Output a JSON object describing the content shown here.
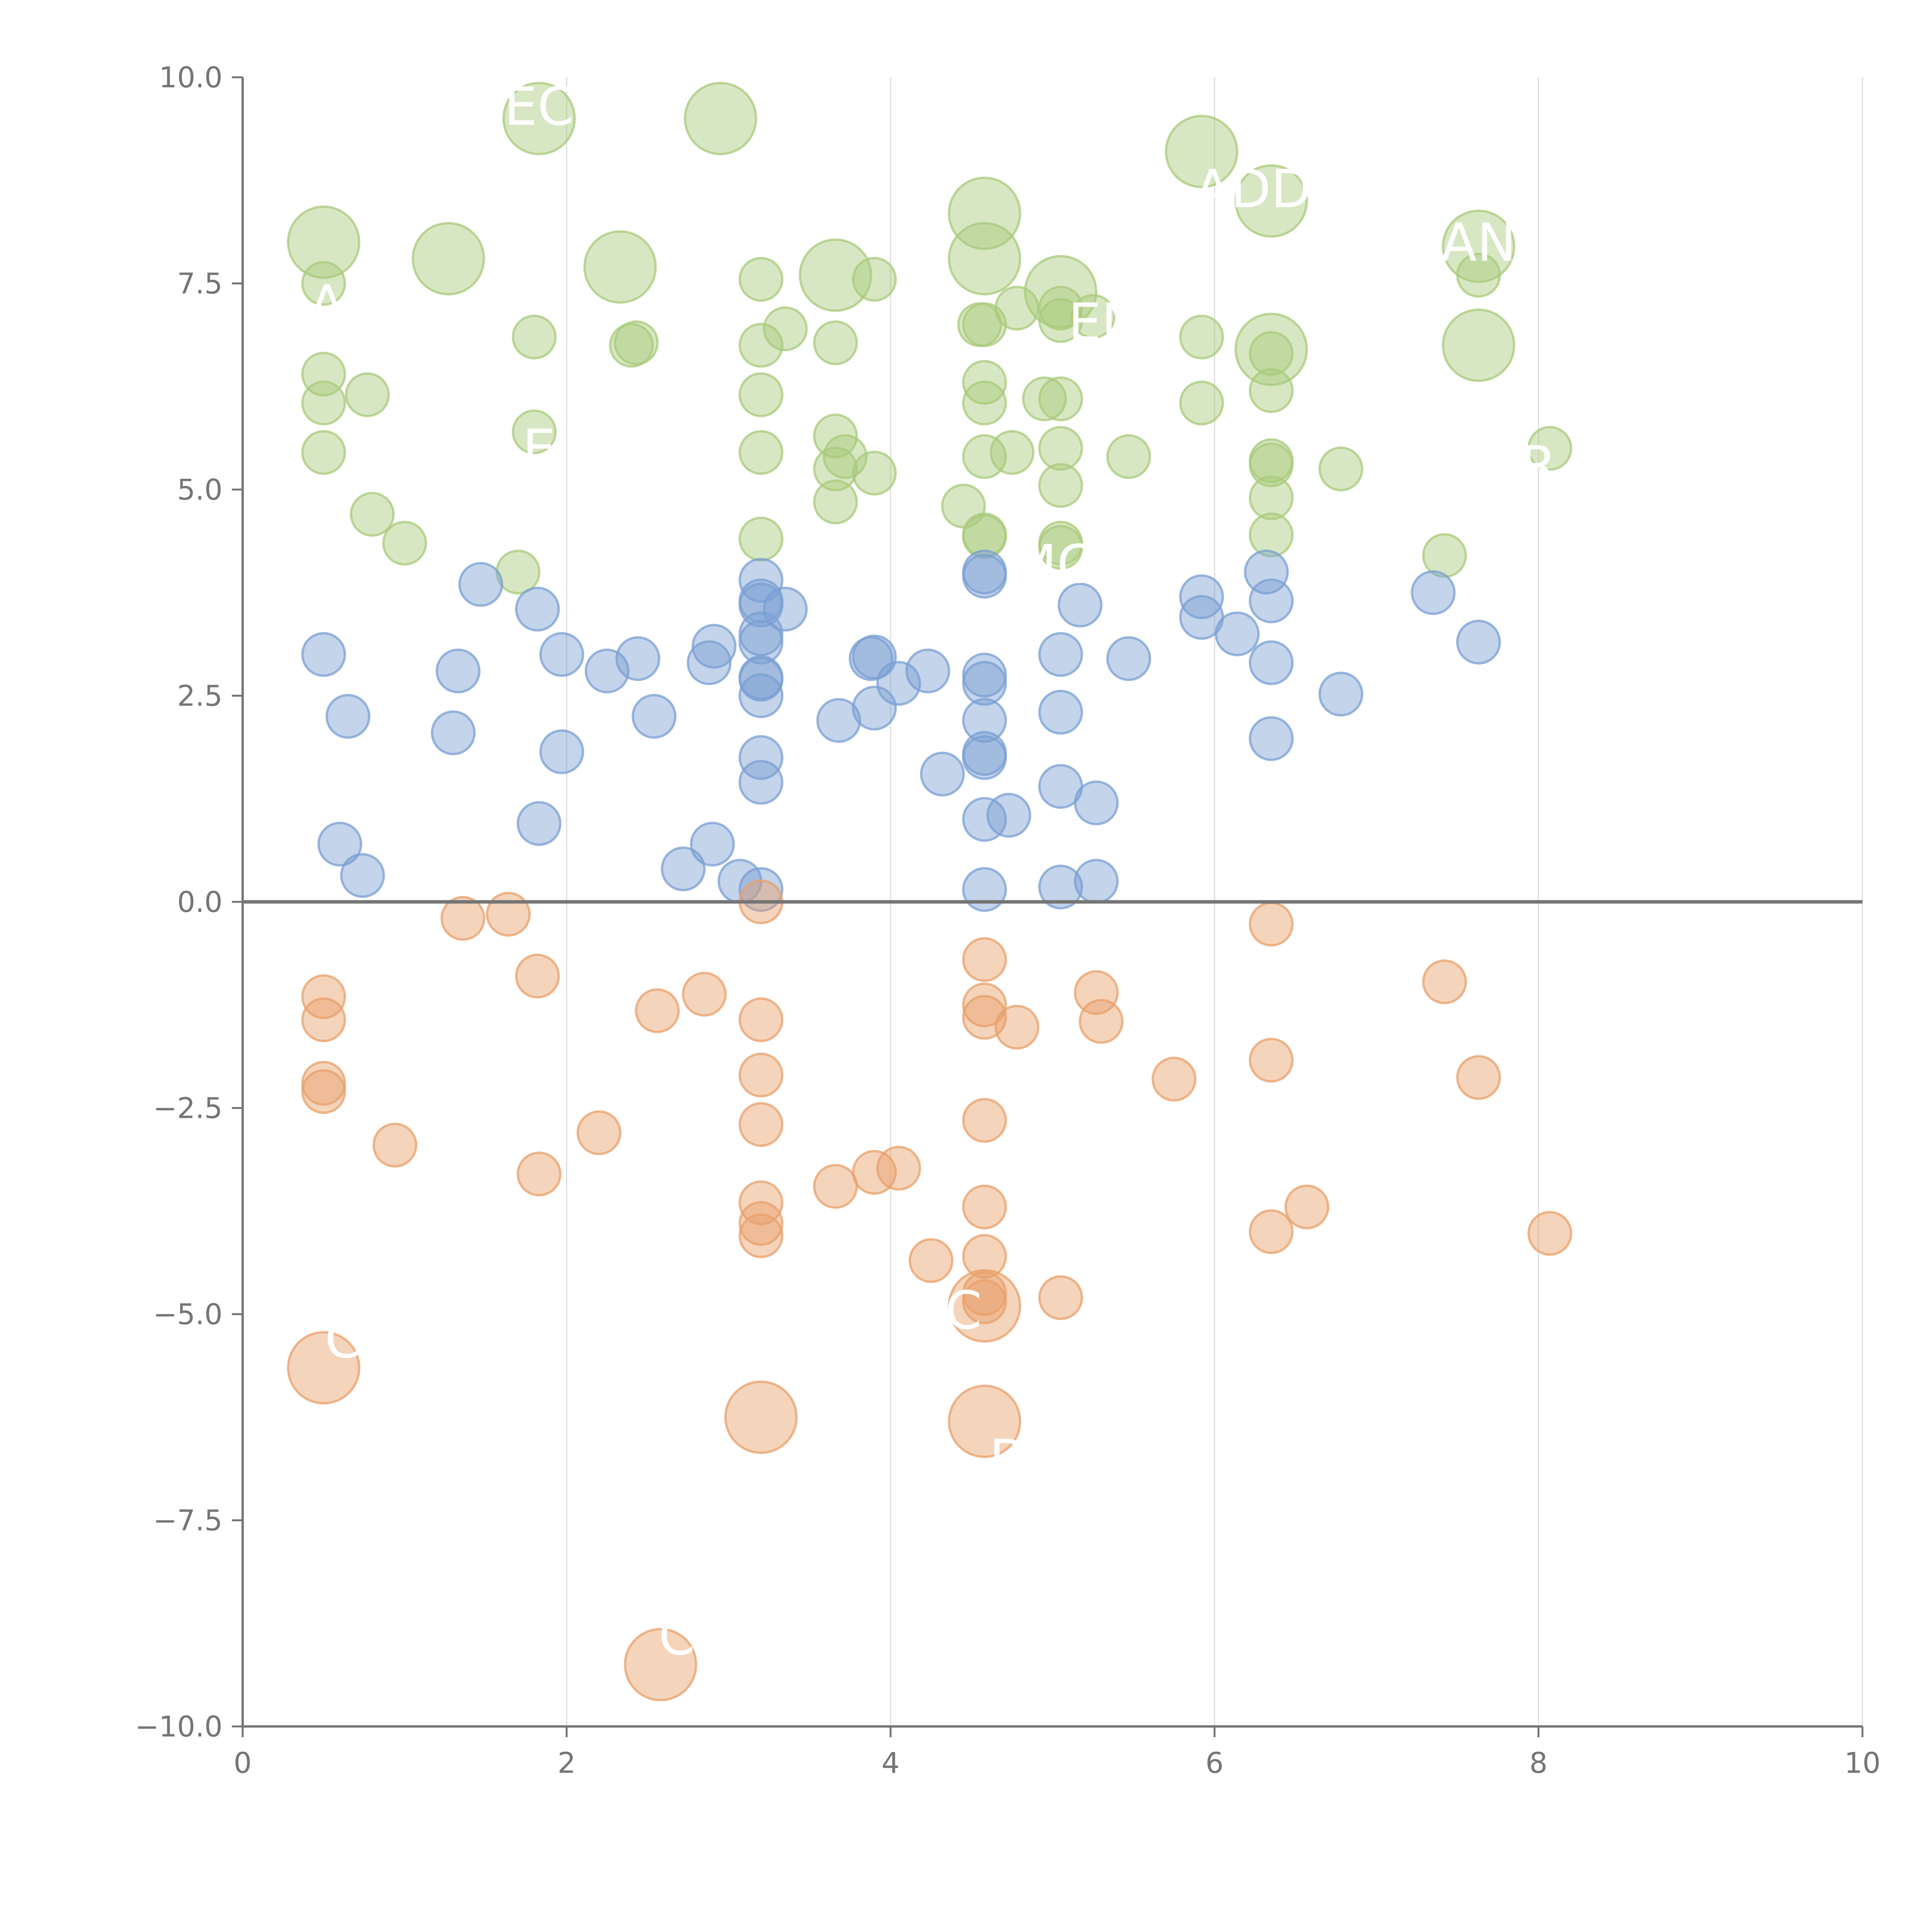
{
  "chart_data": {
    "type": "scatter",
    "title": "",
    "xlabel": "",
    "ylabel": "",
    "xlim": [
      0,
      10
    ],
    "ylim": [
      -10,
      10
    ],
    "xticks": [
      0,
      2,
      4,
      6,
      8,
      10
    ],
    "yticks": [
      -10,
      -7.5,
      -5,
      -2.5,
      0,
      2.5,
      5,
      7.5,
      10
    ],
    "xtick_labels": [
      "0",
      "2",
      "4",
      "6",
      "8",
      "10"
    ],
    "ytick_labels": [
      "−10.0",
      "−7.5",
      "−5.0",
      "−2.5",
      "0.0",
      "2.5",
      "5.0",
      "7.5",
      "10.0"
    ],
    "grid": "vertical lines at x ticks",
    "reference_line_y": 0,
    "colors": {
      "green": "#a9c97b",
      "blue": "#7a9fd3",
      "orange": "#e8a06a",
      "axis": "#757575",
      "grid": "#dcdcdc",
      "label": "#ffffff"
    },
    "series": [
      {
        "name": "green",
        "color": "#a9c97b",
        "points": [
          {
            "x": 0.5,
            "y": 8.0,
            "size": "large"
          },
          {
            "x": 1.27,
            "y": 7.8,
            "size": "large"
          },
          {
            "x": 1.83,
            "y": 9.5,
            "size": "large"
          },
          {
            "x": 2.33,
            "y": 7.7,
            "size": "large"
          },
          {
            "x": 2.95,
            "y": 9.5,
            "size": "large"
          },
          {
            "x": 3.66,
            "y": 7.6,
            "size": "large"
          },
          {
            "x": 4.58,
            "y": 8.35,
            "size": "large"
          },
          {
            "x": 4.58,
            "y": 7.8,
            "size": "large"
          },
          {
            "x": 5.05,
            "y": 7.4,
            "size": "large"
          },
          {
            "x": 5.92,
            "y": 9.1,
            "size": "large"
          },
          {
            "x": 6.35,
            "y": 8.5,
            "size": "large"
          },
          {
            "x": 7.63,
            "y": 7.95,
            "size": "large"
          },
          {
            "x": 6.35,
            "y": 6.7,
            "size": "large"
          },
          {
            "x": 7.63,
            "y": 6.75,
            "size": "large"
          },
          {
            "x": 0.5,
            "y": 7.5
          },
          {
            "x": 0.5,
            "y": 6.4
          },
          {
            "x": 0.5,
            "y": 6.05
          },
          {
            "x": 0.5,
            "y": 5.45
          },
          {
            "x": 0.77,
            "y": 6.15
          },
          {
            "x": 0.8,
            "y": 4.7
          },
          {
            "x": 1.0,
            "y": 4.35
          },
          {
            "x": 1.7,
            "y": 4.0
          },
          {
            "x": 1.8,
            "y": 6.85
          },
          {
            "x": 1.8,
            "y": 5.7
          },
          {
            "x": 2.4,
            "y": 6.75
          },
          {
            "x": 2.43,
            "y": 6.78
          },
          {
            "x": 3.2,
            "y": 7.55
          },
          {
            "x": 3.2,
            "y": 6.75
          },
          {
            "x": 3.2,
            "y": 6.15
          },
          {
            "x": 3.2,
            "y": 5.45
          },
          {
            "x": 3.2,
            "y": 4.4
          },
          {
            "x": 3.35,
            "y": 6.95
          },
          {
            "x": 3.66,
            "y": 6.78
          },
          {
            "x": 3.66,
            "y": 5.65
          },
          {
            "x": 3.66,
            "y": 5.25
          },
          {
            "x": 3.66,
            "y": 4.85
          },
          {
            "x": 3.72,
            "y": 5.4
          },
          {
            "x": 3.9,
            "y": 7.55
          },
          {
            "x": 3.9,
            "y": 5.2
          },
          {
            "x": 4.45,
            "y": 4.8
          },
          {
            "x": 4.55,
            "y": 7.0
          },
          {
            "x": 4.58,
            "y": 7.0
          },
          {
            "x": 4.58,
            "y": 6.3
          },
          {
            "x": 4.58,
            "y": 6.05
          },
          {
            "x": 4.58,
            "y": 5.4
          },
          {
            "x": 4.58,
            "y": 4.45
          },
          {
            "x": 4.58,
            "y": 4.43
          },
          {
            "x": 4.78,
            "y": 7.2
          },
          {
            "x": 4.75,
            "y": 5.45
          },
          {
            "x": 4.95,
            "y": 6.1
          },
          {
            "x": 5.05,
            "y": 7.2
          },
          {
            "x": 5.05,
            "y": 7.05
          },
          {
            "x": 5.05,
            "y": 6.1
          },
          {
            "x": 5.05,
            "y": 5.5
          },
          {
            "x": 5.05,
            "y": 5.05
          },
          {
            "x": 5.05,
            "y": 4.35
          },
          {
            "x": 5.05,
            "y": 4.3
          },
          {
            "x": 5.25,
            "y": 7.1
          },
          {
            "x": 5.47,
            "y": 5.4
          },
          {
            "x": 5.92,
            "y": 6.85
          },
          {
            "x": 5.92,
            "y": 6.05
          },
          {
            "x": 6.35,
            "y": 6.65
          },
          {
            "x": 6.35,
            "y": 6.2
          },
          {
            "x": 6.35,
            "y": 5.35
          },
          {
            "x": 6.35,
            "y": 5.3
          },
          {
            "x": 6.35,
            "y": 4.9
          },
          {
            "x": 6.35,
            "y": 4.45
          },
          {
            "x": 6.78,
            "y": 5.25
          },
          {
            "x": 7.42,
            "y": 4.2
          },
          {
            "x": 7.63,
            "y": 7.6
          },
          {
            "x": 8.07,
            "y": 5.5
          }
        ]
      },
      {
        "name": "blue",
        "color": "#7a9fd3",
        "points": [
          {
            "x": 0.5,
            "y": 3.0
          },
          {
            "x": 0.65,
            "y": 2.25
          },
          {
            "x": 0.6,
            "y": 0.7
          },
          {
            "x": 0.74,
            "y": 0.32
          },
          {
            "x": 1.3,
            "y": 2.05
          },
          {
            "x": 1.33,
            "y": 2.8
          },
          {
            "x": 1.47,
            "y": 3.85
          },
          {
            "x": 1.82,
            "y": 3.55
          },
          {
            "x": 1.83,
            "y": 0.95
          },
          {
            "x": 1.97,
            "y": 3.0
          },
          {
            "x": 1.97,
            "y": 1.82
          },
          {
            "x": 2.25,
            "y": 2.8
          },
          {
            "x": 2.44,
            "y": 2.95
          },
          {
            "x": 2.54,
            "y": 2.25
          },
          {
            "x": 2.72,
            "y": 0.4
          },
          {
            "x": 2.88,
            "y": 2.9
          },
          {
            "x": 2.91,
            "y": 3.1
          },
          {
            "x": 2.9,
            "y": 0.7
          },
          {
            "x": 3.07,
            "y": 0.25
          },
          {
            "x": 3.2,
            "y": 3.9
          },
          {
            "x": 3.2,
            "y": 3.65
          },
          {
            "x": 3.2,
            "y": 3.6
          },
          {
            "x": 3.2,
            "y": 3.25
          },
          {
            "x": 3.2,
            "y": 3.15
          },
          {
            "x": 3.2,
            "y": 2.7
          },
          {
            "x": 3.2,
            "y": 2.72
          },
          {
            "x": 3.2,
            "y": 2.5
          },
          {
            "x": 3.2,
            "y": 1.75
          },
          {
            "x": 3.2,
            "y": 1.45
          },
          {
            "x": 3.2,
            "y": 0.15
          },
          {
            "x": 3.35,
            "y": 3.55
          },
          {
            "x": 3.68,
            "y": 2.2
          },
          {
            "x": 3.88,
            "y": 2.95
          },
          {
            "x": 3.9,
            "y": 2.97
          },
          {
            "x": 3.9,
            "y": 2.35
          },
          {
            "x": 4.05,
            "y": 2.65
          },
          {
            "x": 4.23,
            "y": 2.8
          },
          {
            "x": 4.32,
            "y": 1.55
          },
          {
            "x": 4.58,
            "y": 4.0
          },
          {
            "x": 4.58,
            "y": 3.95
          },
          {
            "x": 4.58,
            "y": 2.75
          },
          {
            "x": 4.58,
            "y": 2.65
          },
          {
            "x": 4.58,
            "y": 2.2
          },
          {
            "x": 4.58,
            "y": 1.8
          },
          {
            "x": 4.58,
            "y": 1.75
          },
          {
            "x": 4.58,
            "y": 1.0
          },
          {
            "x": 4.58,
            "y": 0.15
          },
          {
            "x": 4.73,
            "y": 1.05
          },
          {
            "x": 5.05,
            "y": 3.0
          },
          {
            "x": 5.05,
            "y": 2.3
          },
          {
            "x": 5.05,
            "y": 1.4
          },
          {
            "x": 5.05,
            "y": 0.18
          },
          {
            "x": 5.17,
            "y": 3.6
          },
          {
            "x": 5.27,
            "y": 1.2
          },
          {
            "x": 5.27,
            "y": 0.25
          },
          {
            "x": 5.47,
            "y": 2.95
          },
          {
            "x": 5.92,
            "y": 3.7
          },
          {
            "x": 5.92,
            "y": 3.45
          },
          {
            "x": 6.14,
            "y": 3.25
          },
          {
            "x": 6.32,
            "y": 4.0
          },
          {
            "x": 6.35,
            "y": 3.65
          },
          {
            "x": 6.35,
            "y": 2.9
          },
          {
            "x": 6.35,
            "y": 1.98
          },
          {
            "x": 6.78,
            "y": 2.52
          },
          {
            "x": 7.35,
            "y": 3.75
          },
          {
            "x": 7.63,
            "y": 3.15
          }
        ]
      },
      {
        "name": "orange",
        "color": "#e8a06a",
        "points": [
          {
            "x": 0.5,
            "y": -5.65,
            "size": "large"
          },
          {
            "x": 2.58,
            "y": -9.25,
            "size": "large"
          },
          {
            "x": 3.2,
            "y": -6.25,
            "size": "large"
          },
          {
            "x": 4.58,
            "y": -6.3,
            "size": "large"
          },
          {
            "x": 4.58,
            "y": -4.9,
            "size": "large"
          },
          {
            "x": 0.5,
            "y": -1.15
          },
          {
            "x": 0.5,
            "y": -1.43
          },
          {
            "x": 0.5,
            "y": -2.2
          },
          {
            "x": 0.5,
            "y": -2.3
          },
          {
            "x": 0.94,
            "y": -2.95
          },
          {
            "x": 1.36,
            "y": -0.2
          },
          {
            "x": 1.64,
            "y": -0.15
          },
          {
            "x": 1.82,
            "y": -0.9
          },
          {
            "x": 1.83,
            "y": -3.3
          },
          {
            "x": 2.2,
            "y": -2.8
          },
          {
            "x": 2.56,
            "y": -1.32
          },
          {
            "x": 2.85,
            "y": -1.12
          },
          {
            "x": 3.2,
            "y": 0.0
          },
          {
            "x": 3.2,
            "y": -1.43
          },
          {
            "x": 3.2,
            "y": -2.1
          },
          {
            "x": 3.2,
            "y": -2.7
          },
          {
            "x": 3.2,
            "y": -3.65
          },
          {
            "x": 3.2,
            "y": -3.9
          },
          {
            "x": 3.2,
            "y": -4.05
          },
          {
            "x": 3.66,
            "y": -3.45
          },
          {
            "x": 3.9,
            "y": -3.28
          },
          {
            "x": 4.05,
            "y": -3.23
          },
          {
            "x": 4.25,
            "y": -4.35
          },
          {
            "x": 4.58,
            "y": -0.7
          },
          {
            "x": 4.58,
            "y": -1.25
          },
          {
            "x": 4.58,
            "y": -1.4
          },
          {
            "x": 4.58,
            "y": -2.65
          },
          {
            "x": 4.58,
            "y": -3.7
          },
          {
            "x": 4.58,
            "y": -4.3
          },
          {
            "x": 4.58,
            "y": -4.75
          },
          {
            "x": 4.58,
            "y": -4.85
          },
          {
            "x": 4.78,
            "y": -1.52
          },
          {
            "x": 5.05,
            "y": -4.8
          },
          {
            "x": 5.27,
            "y": -1.1
          },
          {
            "x": 5.3,
            "y": -1.45
          },
          {
            "x": 5.75,
            "y": -2.15
          },
          {
            "x": 6.35,
            "y": -0.27
          },
          {
            "x": 6.35,
            "y": -1.92
          },
          {
            "x": 6.35,
            "y": -4.0
          },
          {
            "x": 6.57,
            "y": -3.7
          },
          {
            "x": 7.42,
            "y": -0.97
          },
          {
            "x": 7.63,
            "y": -2.13
          },
          {
            "x": 8.07,
            "y": -4.02
          }
        ]
      }
    ],
    "annotations": [
      {
        "text": "EC",
        "x": 1.83,
        "y": 9.65
      },
      {
        "text": "ADDR",
        "x": 6.35,
        "y": 8.65
      },
      {
        "text": "AN",
        "x": 7.63,
        "y": 8.0
      },
      {
        "text": "A",
        "x": 0.52,
        "y": 7.25
      },
      {
        "text": "EN",
        "x": 5.32,
        "y": 7.03
      },
      {
        "text": "E",
        "x": 1.83,
        "y": 5.5
      },
      {
        "text": "R",
        "x": 8.0,
        "y": 5.3
      },
      {
        "text": "MC",
        "x": 5.0,
        "y": 4.1
      },
      {
        "text": "C",
        "x": 4.45,
        "y": -4.95
      },
      {
        "text": "C",
        "x": 0.62,
        "y": -5.3
      },
      {
        "text": "B",
        "x": 4.72,
        "y": -6.75
      },
      {
        "text": "C",
        "x": 2.68,
        "y": -8.9
      }
    ]
  }
}
